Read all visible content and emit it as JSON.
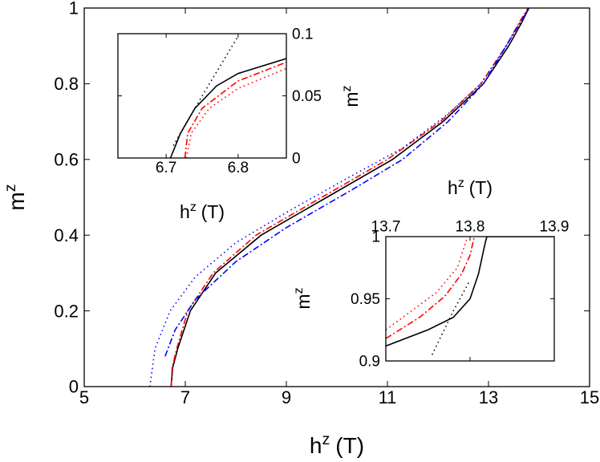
{
  "chart_data": [
    {
      "type": "line",
      "xlabel": {
        "symbol": "h",
        "superscript": "z",
        "unit": "(T)"
      },
      "ylabel": {
        "symbol": "m",
        "superscript": "z"
      },
      "xlim": [
        5,
        15
      ],
      "xticks": [
        5,
        7,
        9,
        11,
        13,
        15
      ],
      "ylim": [
        0,
        1
      ],
      "yticks": [
        0,
        0.2,
        0.4,
        0.6,
        0.8,
        1
      ],
      "series": [
        {
          "color": "#000000",
          "dash": "solid",
          "x": [
            6.72,
            6.75,
            6.85,
            7.1,
            7.6,
            8.5,
            9.8,
            11.1,
            12.1,
            12.9,
            13.4,
            13.65,
            13.8
          ],
          "values": [
            0,
            0.05,
            0.1,
            0.2,
            0.3,
            0.4,
            0.5,
            0.6,
            0.7,
            0.8,
            0.9,
            0.96,
            1
          ]
        },
        {
          "color": "#ff0000",
          "dash": "dashdot",
          "x": [
            6.72,
            6.74,
            6.83,
            7.05,
            7.55,
            8.4,
            9.7,
            11.0,
            12.05,
            12.85,
            13.35,
            13.6,
            13.78
          ],
          "values": [
            0,
            0.05,
            0.1,
            0.2,
            0.3,
            0.4,
            0.5,
            0.6,
            0.7,
            0.8,
            0.9,
            0.96,
            1
          ]
        },
        {
          "color": "#0000ff",
          "dash": "dashdot",
          "x": [
            6.6,
            6.8,
            7.2,
            8.0,
            9.0,
            10.3,
            11.3,
            12.2,
            12.9,
            13.35,
            13.8
          ],
          "values": [
            0.08,
            0.15,
            0.23,
            0.33,
            0.42,
            0.52,
            0.6,
            0.7,
            0.8,
            0.9,
            1
          ]
        },
        {
          "color": "#0000ff",
          "dash": "dotted",
          "x": [
            6.3,
            6.4,
            6.7,
            7.2,
            8.0,
            9.0,
            10.2,
            11.3,
            12.2,
            12.85,
            13.35,
            13.8
          ],
          "values": [
            0,
            0.1,
            0.2,
            0.29,
            0.38,
            0.46,
            0.55,
            0.63,
            0.72,
            0.8,
            0.9,
            1
          ]
        }
      ]
    },
    {
      "type": "line",
      "xlabel": {
        "symbol": "h",
        "superscript": "z",
        "unit": "(T)"
      },
      "ylabel": {
        "symbol": "m",
        "superscript": "z"
      },
      "xlim": [
        6.633,
        6.867
      ],
      "xticks": [
        6.7,
        6.8
      ],
      "ylim": [
        0,
        0.1
      ],
      "yticks": [
        0,
        0.05,
        0.1
      ],
      "series": [
        {
          "color": "#000000",
          "dash": "solid",
          "x": [
            6.706,
            6.72,
            6.74,
            6.77,
            6.8,
            6.867
          ],
          "values": [
            0,
            0.02,
            0.04,
            0.058,
            0.068,
            0.08
          ]
        },
        {
          "color": "#000000",
          "dash": "dotted",
          "x": [
            6.71,
            6.75,
            6.8
          ],
          "values": [
            0.01,
            0.05,
            0.098
          ]
        },
        {
          "color": "#ff0000",
          "dash": "dashdot",
          "x": [
            6.726,
            6.73,
            6.75,
            6.8,
            6.867
          ],
          "values": [
            0,
            0.02,
            0.04,
            0.062,
            0.077
          ]
        },
        {
          "color": "#ff0000",
          "dash": "dotted",
          "x": [
            6.728,
            6.735,
            6.76,
            6.8,
            6.867
          ],
          "values": [
            0,
            0.02,
            0.04,
            0.056,
            0.072
          ]
        }
      ]
    },
    {
      "type": "line",
      "xlabel": {
        "symbol": "h",
        "superscript": "z",
        "unit": "(T)"
      },
      "ylabel": {
        "symbol": "m",
        "superscript": "z"
      },
      "xlim": [
        13.7,
        13.9
      ],
      "xticks": [
        13.7,
        13.8,
        13.9
      ],
      "ylim": [
        0.9,
        1
      ],
      "yticks": [
        0.9,
        0.95,
        1
      ],
      "series": [
        {
          "color": "#000000",
          "dash": "solid",
          "x": [
            13.7,
            13.75,
            13.78,
            13.8,
            13.81,
            13.818,
            13.82,
            13.9
          ],
          "values": [
            0.912,
            0.925,
            0.935,
            0.95,
            0.97,
            0.995,
            1,
            1
          ]
        },
        {
          "color": "#000000",
          "dash": "dotted",
          "x": [
            13.755,
            13.78,
            13.8
          ],
          "values": [
            0.905,
            0.94,
            0.965
          ]
        },
        {
          "color": "#ff0000",
          "dash": "dashdot",
          "x": [
            13.7,
            13.74,
            13.77,
            13.79,
            13.8,
            13.805
          ],
          "values": [
            0.918,
            0.935,
            0.952,
            0.97,
            0.985,
            1
          ]
        },
        {
          "color": "#ff0000",
          "dash": "dotted",
          "x": [
            13.7,
            13.73,
            13.76,
            13.785,
            13.797
          ],
          "values": [
            0.925,
            0.94,
            0.955,
            0.975,
            1
          ]
        }
      ]
    }
  ]
}
